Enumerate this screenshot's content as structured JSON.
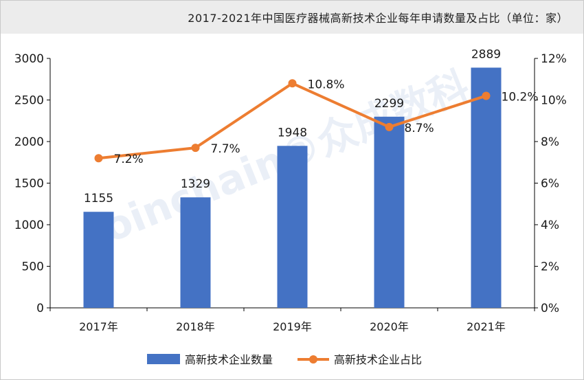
{
  "title": "2017-2021年中国医疗器械高新技术企业每年申请数量及占比（单位：家）",
  "watermark": "Joinchain®众成数科",
  "colors": {
    "bar": "#4472c4",
    "line": "#ed7d31",
    "axis": "#000000"
  },
  "chart_data": {
    "type": "bar",
    "categories": [
      "2017年",
      "2018年",
      "2019年",
      "2020年",
      "2021年"
    ],
    "series": [
      {
        "name": "高新技术企业数量",
        "type": "bar",
        "axis": "left",
        "values": [
          1155,
          1329,
          1948,
          2299,
          2889
        ],
        "labels": [
          "1155",
          "1329",
          "1948",
          "2299",
          "2889"
        ]
      },
      {
        "name": "高新技术企业占比",
        "type": "line",
        "axis": "right",
        "values": [
          7.2,
          7.7,
          10.8,
          8.7,
          10.2
        ],
        "labels": [
          "7.2%",
          "7.7%",
          "10.8%",
          "8.7%",
          "10.2%"
        ]
      }
    ],
    "y_left": {
      "min": 0,
      "max": 3000,
      "ticks": [
        "0",
        "500",
        "1000",
        "1500",
        "2000",
        "2500",
        "3000"
      ]
    },
    "y_right": {
      "min": 0,
      "max": 12,
      "ticks": [
        "0%",
        "2%",
        "4%",
        "6%",
        "8%",
        "10%",
        "12%"
      ]
    },
    "grid": false,
    "legend_position": "bottom"
  }
}
